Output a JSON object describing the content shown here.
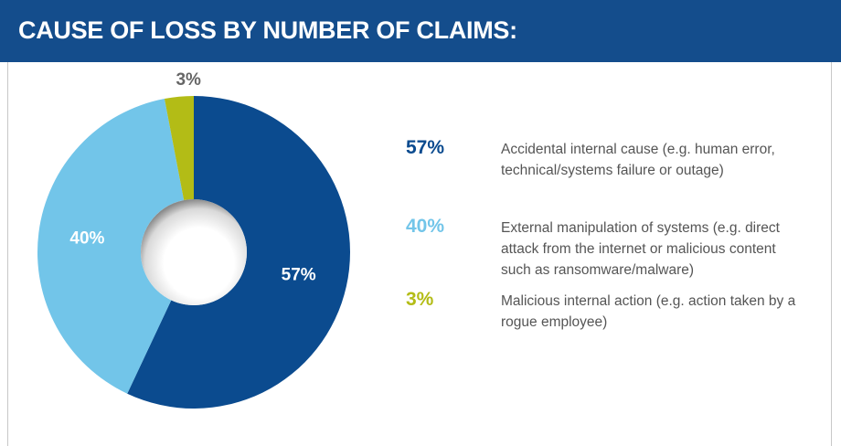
{
  "chart_data": {
    "type": "pie",
    "donut": true,
    "title": "CAUSE OF LOSS BY NUMBER OF CLAIMS:",
    "categories": [
      "Accidental internal cause (e.g. human error, technical/systems failure or outage)",
      "External manipulation of systems (e.g. direct attack from the internet or malicious content such as ransomware/malware)",
      "Malicious internal action (e.g. action taken by a rogue employee)"
    ],
    "values": [
      57,
      40,
      3
    ],
    "value_labels": [
      "57%",
      "40%",
      "3%"
    ],
    "colors": [
      "#0b4b8f",
      "#72c5e9",
      "#b3bc16"
    ]
  }
}
